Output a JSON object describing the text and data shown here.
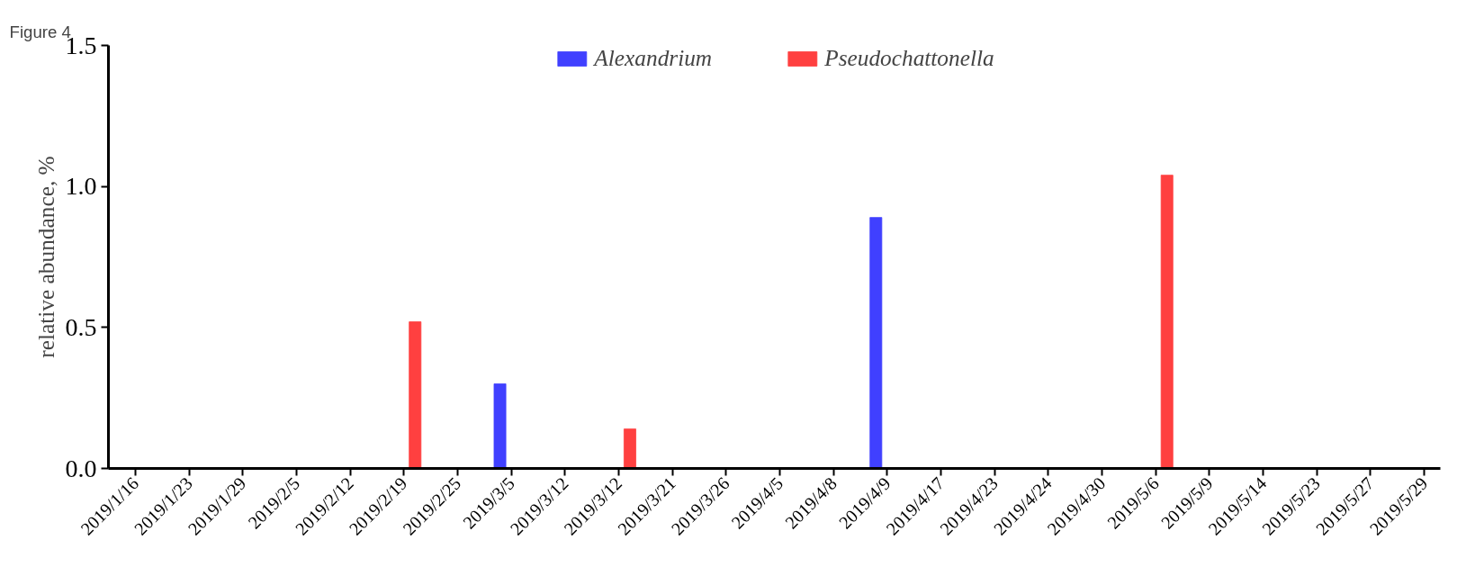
{
  "chart_data": {
    "type": "bar",
    "ylabel": "relative abundance, %",
    "annotations": [
      "Figure 4"
    ],
    "categories": [
      "2019/1/16",
      "2019/1/23",
      "2019/1/29",
      "2019/2/5",
      "2019/2/12",
      "2019/2/19",
      "2019/2/25",
      "2019/3/5",
      "2019/3/12",
      "2019/3/12",
      "2019/3/21",
      "2019/3/26",
      "2019/4/5",
      "2019/4/8",
      "2019/4/9",
      "2019/4/17",
      "2019/4/23",
      "2019/4/24",
      "2019/4/30",
      "2019/5/6",
      "2019/5/9",
      "2019/5/14",
      "2019/5/23",
      "2019/5/27",
      "2019/5/29"
    ],
    "series": [
      {
        "name": "Alexandrium",
        "color": "#4040ff",
        "values": [
          null,
          null,
          null,
          null,
          null,
          null,
          null,
          0.3,
          null,
          null,
          null,
          null,
          null,
          null,
          0.89,
          null,
          null,
          null,
          null,
          null,
          null,
          null,
          null,
          null,
          null
        ]
      },
      {
        "name": "Pseudochattonella",
        "color": "#ff4040",
        "values": [
          null,
          null,
          null,
          null,
          null,
          0.52,
          null,
          null,
          null,
          0.14,
          null,
          null,
          null,
          null,
          null,
          null,
          null,
          null,
          null,
          1.04,
          null,
          null,
          null,
          null,
          null
        ]
      }
    ],
    "ylim": [
      0,
      1.5
    ],
    "yticks": [
      {
        "value": 0,
        "label": "0.0"
      },
      {
        "value": 0.5,
        "label": "0.5"
      },
      {
        "value": 1,
        "label": "1.0"
      },
      {
        "value": 1.5,
        "label": "1.5"
      }
    ],
    "grid": false,
    "legend": "top"
  }
}
